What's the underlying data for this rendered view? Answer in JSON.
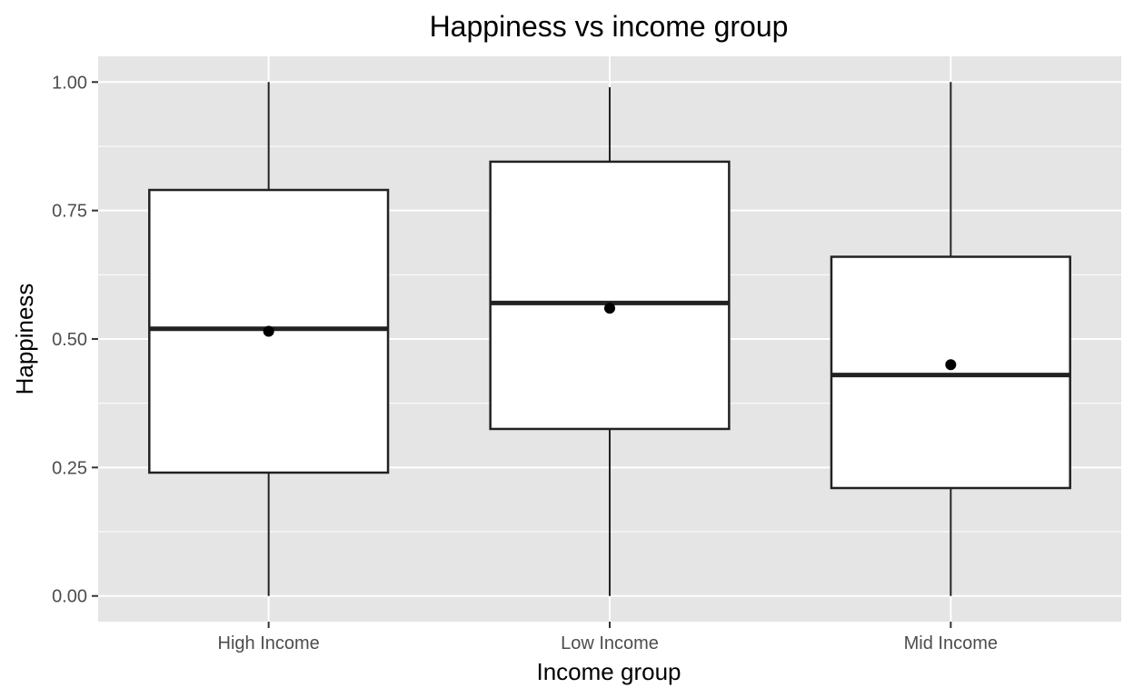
{
  "chart_data": {
    "type": "boxplot",
    "title": "Happiness vs income group",
    "xlabel": "Income group",
    "ylabel": "Happiness",
    "ylim": [
      -0.05,
      1.05
    ],
    "y_ticks": [
      0.0,
      0.25,
      0.5,
      0.75,
      1.0
    ],
    "y_tick_labels": [
      "0.00",
      "0.25",
      "0.50",
      "0.75",
      "1.00"
    ],
    "grid": true,
    "colors": {
      "panel": "#e5e5e5",
      "grid": "#ffffff",
      "box_fill": "#ffffff",
      "box_stroke": "#222222",
      "mean_point": "#000000"
    },
    "categories": [
      "High Income",
      "Low Income",
      "Mid Income"
    ],
    "boxes": [
      {
        "category": "High Income",
        "min": 0.0,
        "q1": 0.24,
        "median": 0.52,
        "q3": 0.79,
        "max": 1.0,
        "mean": 0.515
      },
      {
        "category": "Low Income",
        "min": 0.0,
        "q1": 0.325,
        "median": 0.57,
        "q3": 0.845,
        "max": 0.99,
        "mean": 0.56
      },
      {
        "category": "Mid Income",
        "min": 0.0,
        "q1": 0.21,
        "median": 0.43,
        "q3": 0.66,
        "max": 1.0,
        "mean": 0.45
      }
    ]
  }
}
